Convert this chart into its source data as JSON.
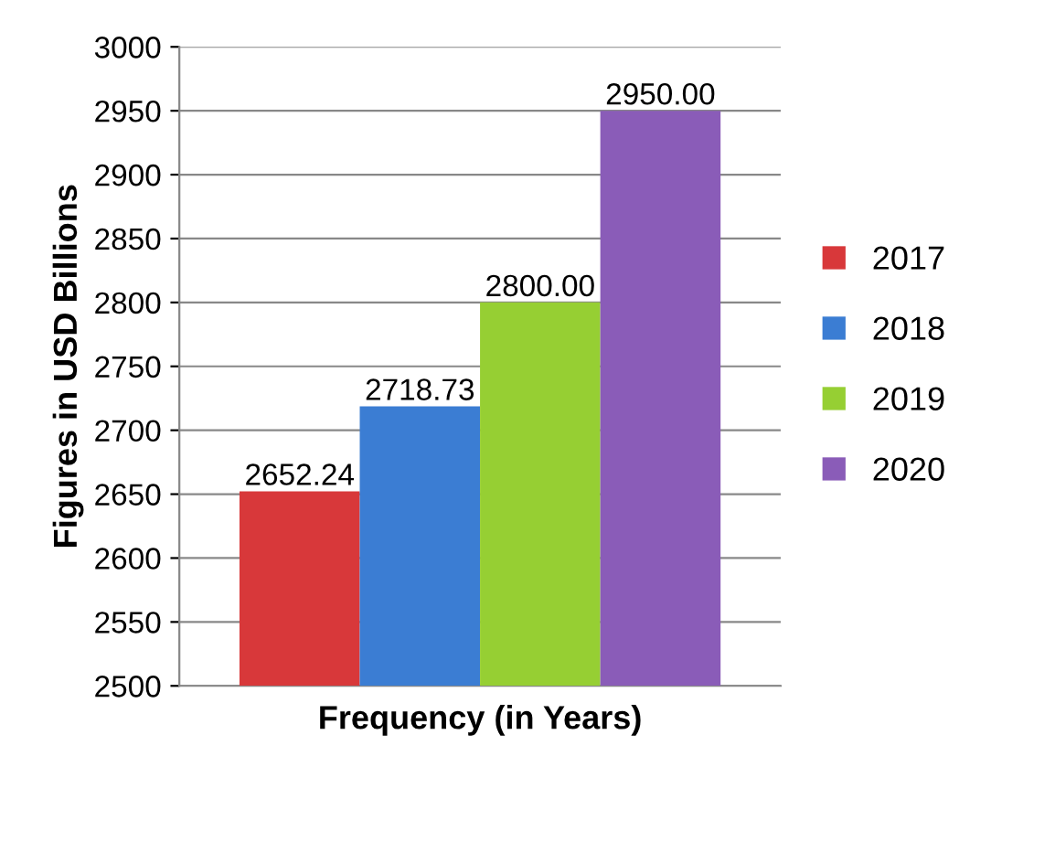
{
  "chart_data": {
    "type": "bar",
    "xlabel": "Frequency (in Years)",
    "ylabel": "Figures in USD Billions",
    "categories": [
      null
    ],
    "series": [
      {
        "name": "2017",
        "color": "#d8383a",
        "values": [
          2652.24
        ],
        "value_labels": [
          "2652.24"
        ]
      },
      {
        "name": "2018",
        "color": "#3b7dd3",
        "values": [
          2718.73
        ],
        "value_labels": [
          "2718.73"
        ]
      },
      {
        "name": "2019",
        "color": "#96cf33",
        "values": [
          2800.0
        ],
        "value_labels": [
          "2800.00"
        ]
      },
      {
        "name": "2020",
        "color": "#8a5cb8",
        "values": [
          2950.0
        ],
        "value_labels": [
          "2950.00"
        ]
      }
    ],
    "ylim": [
      2500,
      3000
    ],
    "yticks": [
      2500,
      2550,
      2600,
      2650,
      2700,
      2750,
      2800,
      2850,
      2900,
      2950,
      3000
    ],
    "grid": "y",
    "legend": "right"
  }
}
